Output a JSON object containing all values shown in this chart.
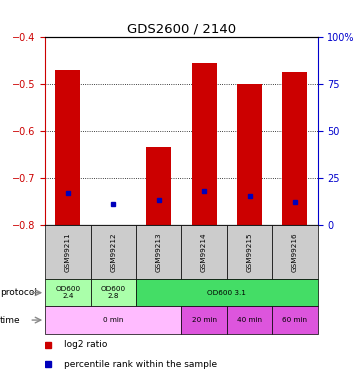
{
  "title": "GDS2600 / 2140",
  "samples": [
    "GSM99211",
    "GSM99212",
    "GSM99213",
    "GSM99214",
    "GSM99215",
    "GSM99216"
  ],
  "log2_ratio": [
    -0.47,
    -0.8,
    -0.635,
    -0.455,
    -0.5,
    -0.475
  ],
  "percentile_rank_left_axis": [
    -0.732,
    -0.755,
    -0.748,
    -0.728,
    -0.738,
    -0.752
  ],
  "ylim_left": [
    -0.8,
    -0.4
  ],
  "ylim_right": [
    0,
    100
  ],
  "yticks_left": [
    -0.8,
    -0.7,
    -0.6,
    -0.5,
    -0.4
  ],
  "yticks_right": [
    0,
    25,
    50,
    75,
    100
  ],
  "bar_color": "#cc0000",
  "blue_color": "#0000bb",
  "left_axis_color": "#cc0000",
  "right_axis_color": "#0000cc",
  "bar_width": 0.55,
  "sample_header_color": "#cccccc",
  "protocol_row": [
    {
      "label": "OD600\n2.4",
      "start": 0,
      "end": 1,
      "color": "#aaffaa"
    },
    {
      "label": "OD600\n2.8",
      "start": 1,
      "end": 2,
      "color": "#aaffaa"
    },
    {
      "label": "OD600 3.1",
      "start": 2,
      "end": 6,
      "color": "#44dd66"
    }
  ],
  "time_row": [
    {
      "label": "0 min",
      "start": 0,
      "end": 3,
      "color": "#ffbbff"
    },
    {
      "label": "20 min",
      "start": 3,
      "end": 4,
      "color": "#dd55dd"
    },
    {
      "label": "40 min",
      "start": 4,
      "end": 5,
      "color": "#dd55dd"
    },
    {
      "label": "60 min",
      "start": 5,
      "end": 6,
      "color": "#dd55dd"
    }
  ],
  "legend_items": [
    {
      "color": "#cc0000",
      "label": "log2 ratio"
    },
    {
      "color": "#0000bb",
      "label": "percentile rank within the sample"
    }
  ],
  "grid_yticks": [
    -0.5,
    -0.6,
    -0.7
  ]
}
